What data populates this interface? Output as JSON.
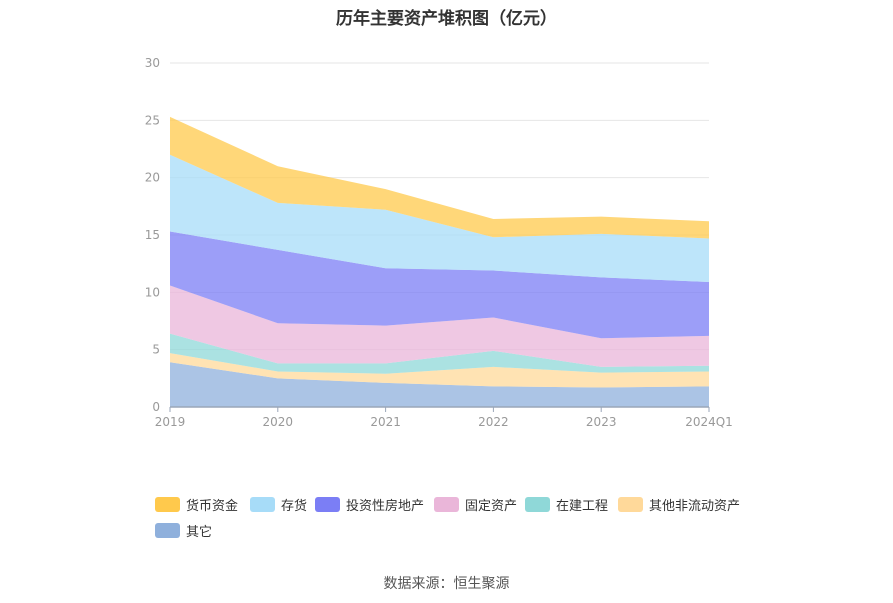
{
  "title": "历年主要资产堆积图（亿元）",
  "source": "数据来源：恒生聚源",
  "chart_data": {
    "type": "area",
    "stacked": true,
    "categories": [
      "2019",
      "2020",
      "2021",
      "2022",
      "2023",
      "2024Q1"
    ],
    "ylim": [
      0,
      30
    ],
    "yticks": [
      0,
      5,
      10,
      15,
      20,
      25,
      30
    ],
    "grid": true,
    "legend_position": "bottom",
    "series": [
      {
        "name": "其它",
        "color": "#8fb0dc",
        "values": [
          3.9,
          2.5,
          2.1,
          1.8,
          1.7,
          1.8
        ]
      },
      {
        "name": "其他非流动资产",
        "color": "#ffd99a",
        "values": [
          0.8,
          0.6,
          0.8,
          1.7,
          1.3,
          1.3
        ]
      },
      {
        "name": "在建工程",
        "color": "#8fd8d8",
        "values": [
          1.7,
          0.7,
          0.9,
          1.4,
          0.5,
          0.5
        ]
      },
      {
        "name": "固定资产",
        "color": "#eab6d9",
        "values": [
          4.2,
          3.5,
          3.3,
          2.9,
          2.5,
          2.6
        ]
      },
      {
        "name": "投资性房地产",
        "color": "#7b7ef5",
        "values": [
          4.7,
          6.4,
          5.0,
          4.1,
          5.3,
          4.7
        ]
      },
      {
        "name": "存货",
        "color": "#a7dcf8",
        "values": [
          6.7,
          4.1,
          5.1,
          2.9,
          3.8,
          3.8
        ]
      },
      {
        "name": "货币资金",
        "color": "#ffc94c",
        "values": [
          3.3,
          3.2,
          1.8,
          1.6,
          1.5,
          1.5
        ]
      }
    ]
  }
}
